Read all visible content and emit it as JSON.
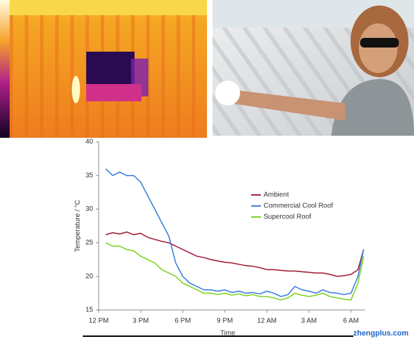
{
  "chart_data": {
    "type": "line",
    "y_label": "Temperature / °C",
    "x_label": "Time",
    "watermark": "zhengplus.com",
    "x": [
      0.5,
      1,
      1.5,
      2,
      2.5,
      3,
      3.5,
      4,
      4.5,
      5,
      5.5,
      6,
      6.5,
      7,
      7.5,
      8,
      8.5,
      9,
      9.5,
      10,
      10.5,
      11,
      11.5,
      12,
      12.5,
      13,
      13.5,
      14,
      14.5,
      15,
      15.5,
      16,
      16.5,
      17,
      17.5,
      18,
      18.5,
      18.9
    ],
    "xlim": [
      0,
      19
    ],
    "xticks": [
      {
        "value": 0,
        "label": "12 PM"
      },
      {
        "value": 3,
        "label": "3 PM"
      },
      {
        "value": 6,
        "label": "6 PM"
      },
      {
        "value": 9,
        "label": "9 PM"
      },
      {
        "value": 12,
        "label": "12 AM"
      },
      {
        "value": 15,
        "label": "3 AM"
      },
      {
        "value": 18,
        "label": "6 AM"
      }
    ],
    "ylim": [
      15,
      40
    ],
    "yticks": [
      15,
      20,
      25,
      30,
      35,
      40
    ],
    "legend": "right",
    "series": [
      {
        "name": "Ambient",
        "color": "#a3203c",
        "values": [
          26.2,
          26.5,
          26.3,
          26.6,
          26.2,
          26.4,
          25.8,
          25.5,
          25.2,
          25,
          24.5,
          24,
          23.5,
          23,
          22.8,
          22.5,
          22.3,
          22.1,
          22,
          21.8,
          21.6,
          21.5,
          21.3,
          21,
          21,
          20.9,
          20.8,
          20.8,
          20.7,
          20.6,
          20.5,
          20.5,
          20.3,
          20,
          20.1,
          20.3,
          21,
          24
        ]
      },
      {
        "name": "Commercial Cool Roof",
        "color": "#3b7fe0",
        "values": [
          36,
          35,
          35.5,
          35,
          35,
          34,
          32,
          30,
          28,
          26,
          22,
          20,
          19,
          18.5,
          18,
          18,
          17.8,
          18,
          17.6,
          17.8,
          17.5,
          17.6,
          17.4,
          17.8,
          17.5,
          17,
          17.3,
          18.5,
          18,
          17.8,
          17.5,
          18,
          17.6,
          17.5,
          17.3,
          17.5,
          20,
          24
        ]
      },
      {
        "name": "Supercool Roof",
        "color": "#7ed321",
        "values": [
          25,
          24.5,
          24.5,
          24,
          23.8,
          23,
          22.5,
          22,
          21,
          20.5,
          20,
          19,
          18.5,
          18,
          17.5,
          17.5,
          17.3,
          17.5,
          17.2,
          17.4,
          17.1,
          17.3,
          17,
          17,
          16.8,
          16.5,
          16.8,
          17.5,
          17.2,
          17,
          17.2,
          17.5,
          17,
          16.8,
          16.6,
          16.5,
          19,
          23
        ]
      }
    ]
  }
}
